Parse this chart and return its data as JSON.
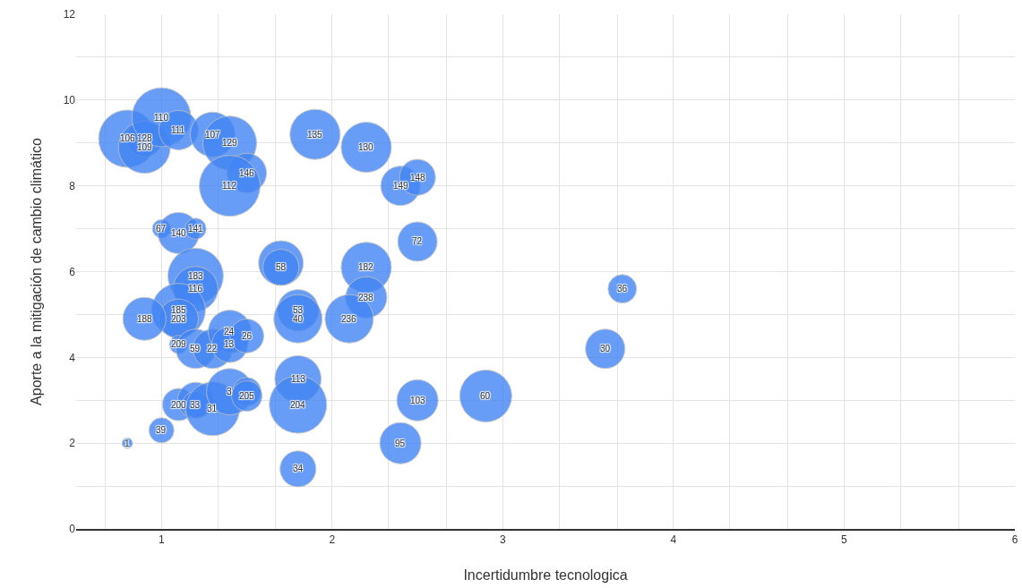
{
  "chart_data": {
    "type": "bubble",
    "xlabel": "Incertidumbre tecnologica",
    "ylabel": "Aporte a la mitigación de cambio climático",
    "xlim": [
      0.5,
      6
    ],
    "xticks": [
      {
        "value": 0.67,
        "label": null
      },
      1,
      {
        "value": 1.33,
        "label": null
      },
      {
        "value": 1.67,
        "label": null
      },
      2,
      {
        "value": 2.33,
        "label": null
      },
      {
        "value": 2.67,
        "label": null
      },
      3,
      {
        "value": 3.33,
        "label": null
      },
      {
        "value": 3.67,
        "label": null
      },
      4,
      {
        "value": 4.33,
        "label": null
      },
      {
        "value": 4.67,
        "label": null
      },
      5,
      {
        "value": 5.33,
        "label": null
      },
      {
        "value": 5.67,
        "label": null
      },
      6
    ],
    "ylim": [
      0,
      12
    ],
    "yticks": [
      0,
      {
        "value": 1,
        "label": null
      },
      2,
      {
        "value": 3,
        "label": null
      },
      4,
      {
        "value": 5,
        "label": null
      },
      6,
      {
        "value": 7,
        "label": null
      },
      8,
      {
        "value": 9,
        "label": null
      },
      10,
      {
        "value": 11,
        "label": null
      },
      12
    ],
    "grid": true,
    "series": [
      {
        "color": "#4285f4",
        "x": [
          0.8,
          0.9,
          0.9,
          1.0,
          1.1,
          1.3,
          1.4,
          1.5,
          1.4,
          1.9,
          2.2,
          2.4,
          2.5,
          1.0,
          1.1,
          1.2,
          2.5,
          1.2,
          1.2,
          1.1,
          1.1,
          0.9,
          1.1,
          1.2,
          1.3,
          1.4,
          1.4,
          1.5,
          1.7,
          1.7,
          2.2,
          2.2,
          2.1,
          1.8,
          1.8,
          3.7,
          3.6,
          1.8,
          1.8,
          2.5,
          2.9,
          2.4,
          1.8,
          1.1,
          1.2,
          1.2,
          1.3,
          1.4,
          1.5,
          1.5,
          1.0,
          0.8
        ],
        "values": [
          9.1,
          9.1,
          8.9,
          9.6,
          9.3,
          9.2,
          9.0,
          8.3,
          8.0,
          9.2,
          8.9,
          8.0,
          8.2,
          7.0,
          6.9,
          7.0,
          6.7,
          5.9,
          5.6,
          5.1,
          4.9,
          4.9,
          4.3,
          4.2,
          4.2,
          4.6,
          4.3,
          4.5,
          6.2,
          6.1,
          6.1,
          5.4,
          4.9,
          5.1,
          4.9,
          5.6,
          4.2,
          3.5,
          2.9,
          3.0,
          3.1,
          2.0,
          1.4,
          2.9,
          3.0,
          2.9,
          2.8,
          3.2,
          3.2,
          3.1,
          2.3,
          2.0
        ],
        "sizes": [
          0.89,
          0.35,
          0.73,
          0.94,
          0.42,
          0.54,
          0.78,
          0.42,
          1,
          0.68,
          0.68,
          0.42,
          0.35,
          0.09,
          0.46,
          0.12,
          0.42,
          0.83,
          0.54,
          0.78,
          0.42,
          0.5,
          0.09,
          0.42,
          0.42,
          0.5,
          0.35,
          0.31,
          0.54,
          0.35,
          0.68,
          0.46,
          0.63,
          0.46,
          0.63,
          0.22,
          0.42,
          0.58,
          0.89,
          0.46,
          0.73,
          0.46,
          0.35,
          0.28,
          0.35,
          0.19,
          0.78,
          0.58,
          0.22,
          0.25,
          0.17,
          0.03
        ]
      }
    ],
    "annotations": [
      {
        "text": "106",
        "x": 0.8,
        "y": 9.1
      },
      {
        "text": "128",
        "x": 0.9,
        "y": 9.1
      },
      {
        "text": "109",
        "x": 0.9,
        "y": 8.9
      },
      {
        "text": "110",
        "x": 1.0,
        "y": 9.6
      },
      {
        "text": "111",
        "x": 1.1,
        "y": 9.3
      },
      {
        "text": "107",
        "x": 1.3,
        "y": 9.2
      },
      {
        "text": "129",
        "x": 1.4,
        "y": 9.0
      },
      {
        "text": "146",
        "x": 1.5,
        "y": 8.3
      },
      {
        "text": "112",
        "x": 1.4,
        "y": 8.0
      },
      {
        "text": "135",
        "x": 1.9,
        "y": 9.2
      },
      {
        "text": "130",
        "x": 2.2,
        "y": 8.9
      },
      {
        "text": "149",
        "x": 2.4,
        "y": 8.0
      },
      {
        "text": "148",
        "x": 2.5,
        "y": 8.2
      },
      {
        "text": "67",
        "x": 1.0,
        "y": 7.0
      },
      {
        "text": "140",
        "x": 1.1,
        "y": 6.9
      },
      {
        "text": "141",
        "x": 1.2,
        "y": 7.0
      },
      {
        "text": "72",
        "x": 2.5,
        "y": 6.7
      },
      {
        "text": "183",
        "x": 1.2,
        "y": 5.9
      },
      {
        "text": "116",
        "x": 1.2,
        "y": 5.6
      },
      {
        "text": "185",
        "x": 1.1,
        "y": 5.1
      },
      {
        "text": "203",
        "x": 1.1,
        "y": 4.9
      },
      {
        "text": "188",
        "x": 0.9,
        "y": 4.9
      },
      {
        "text": "209",
        "x": 1.1,
        "y": 4.3
      },
      {
        "text": "59",
        "x": 1.2,
        "y": 4.2
      },
      {
        "text": "22",
        "x": 1.3,
        "y": 4.2
      },
      {
        "text": "24",
        "x": 1.4,
        "y": 4.6
      },
      {
        "text": "13",
        "x": 1.4,
        "y": 4.3
      },
      {
        "text": "26",
        "x": 1.5,
        "y": 4.5
      },
      {
        "text": "58",
        "x": 1.7,
        "y": 6.1
      },
      {
        "text": "182",
        "x": 2.2,
        "y": 6.1
      },
      {
        "text": "238",
        "x": 2.2,
        "y": 5.4
      },
      {
        "text": "236",
        "x": 2.1,
        "y": 4.9
      },
      {
        "text": "53",
        "x": 1.8,
        "y": 5.1
      },
      {
        "text": "40",
        "x": 1.8,
        "y": 4.9
      },
      {
        "text": "36",
        "x": 3.7,
        "y": 5.6
      },
      {
        "text": "30",
        "x": 3.6,
        "y": 4.2
      },
      {
        "text": "113",
        "x": 1.8,
        "y": 3.5
      },
      {
        "text": "204",
        "x": 1.8,
        "y": 2.9
      },
      {
        "text": "103",
        "x": 2.5,
        "y": 3.0
      },
      {
        "text": "60",
        "x": 2.9,
        "y": 3.1
      },
      {
        "text": "95",
        "x": 2.4,
        "y": 2.0
      },
      {
        "text": "34",
        "x": 1.8,
        "y": 1.4
      },
      {
        "text": "200",
        "x": 1.1,
        "y": 2.9
      },
      {
        "text": "33",
        "x": 1.2,
        "y": 2.9
      },
      {
        "text": "31",
        "x": 1.3,
        "y": 2.8
      },
      {
        "text": "3",
        "x": 1.4,
        "y": 3.2
      },
      {
        "text": "205",
        "x": 1.5,
        "y": 3.1
      },
      {
        "text": "39",
        "x": 1.0,
        "y": 2.3
      },
      {
        "text": "1",
        "x": 0.8,
        "y": 2.0
      }
    ]
  }
}
